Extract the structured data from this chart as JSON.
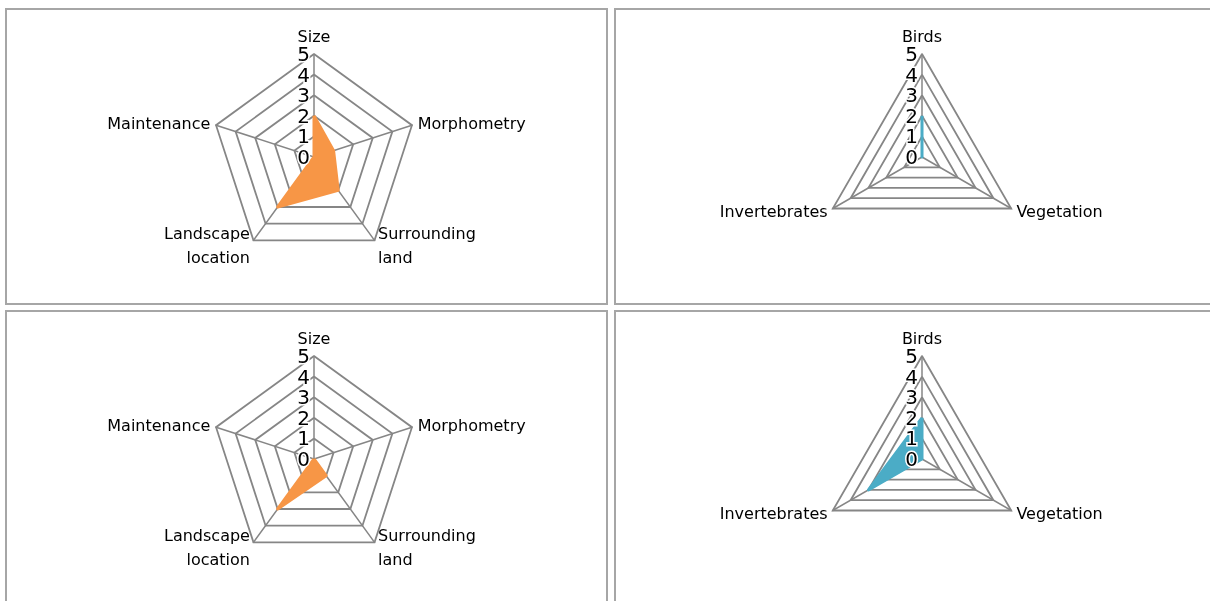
{
  "chart_data": [
    {
      "type": "radar",
      "categories": [
        "Size",
        "Morphometry",
        "Surrounding\nland",
        "Landscape\nlocation",
        "Maintenance"
      ],
      "series": [
        {
          "color": "#f79646",
          "values": [
            2,
            1,
            2,
            3,
            0
          ]
        }
      ],
      "ylim": [
        0,
        5
      ],
      "yticks": [
        0,
        1,
        2,
        3,
        4,
        5
      ],
      "grid": true
    },
    {
      "type": "radar",
      "categories": [
        "Birds",
        "Vegetation",
        "Invertebrates"
      ],
      "series": [
        {
          "color": "#4bacc6",
          "values": [
            2,
            0,
            0
          ]
        }
      ],
      "ylim": [
        0,
        5
      ],
      "yticks": [
        0,
        1,
        2,
        3,
        4,
        5
      ],
      "grid": true
    },
    {
      "type": "radar",
      "categories": [
        "Size",
        "Morphometry",
        "Surrounding\nland",
        "Landscape\nlocation",
        "Maintenance"
      ],
      "series": [
        {
          "color": "#f79646",
          "values": [
            0,
            0,
            1,
            3,
            0
          ]
        }
      ],
      "ylim": [
        0,
        5
      ],
      "yticks": [
        0,
        1,
        2,
        3,
        4,
        5
      ],
      "grid": true
    },
    {
      "type": "radar",
      "categories": [
        "Birds",
        "Vegetation",
        "Invertebrates"
      ],
      "series": [
        {
          "color": "#4bacc6",
          "values": [
            2,
            0,
            3
          ]
        }
      ],
      "ylim": [
        0,
        5
      ],
      "yticks": [
        0,
        1,
        2,
        3,
        4,
        5
      ],
      "grid": true
    }
  ]
}
